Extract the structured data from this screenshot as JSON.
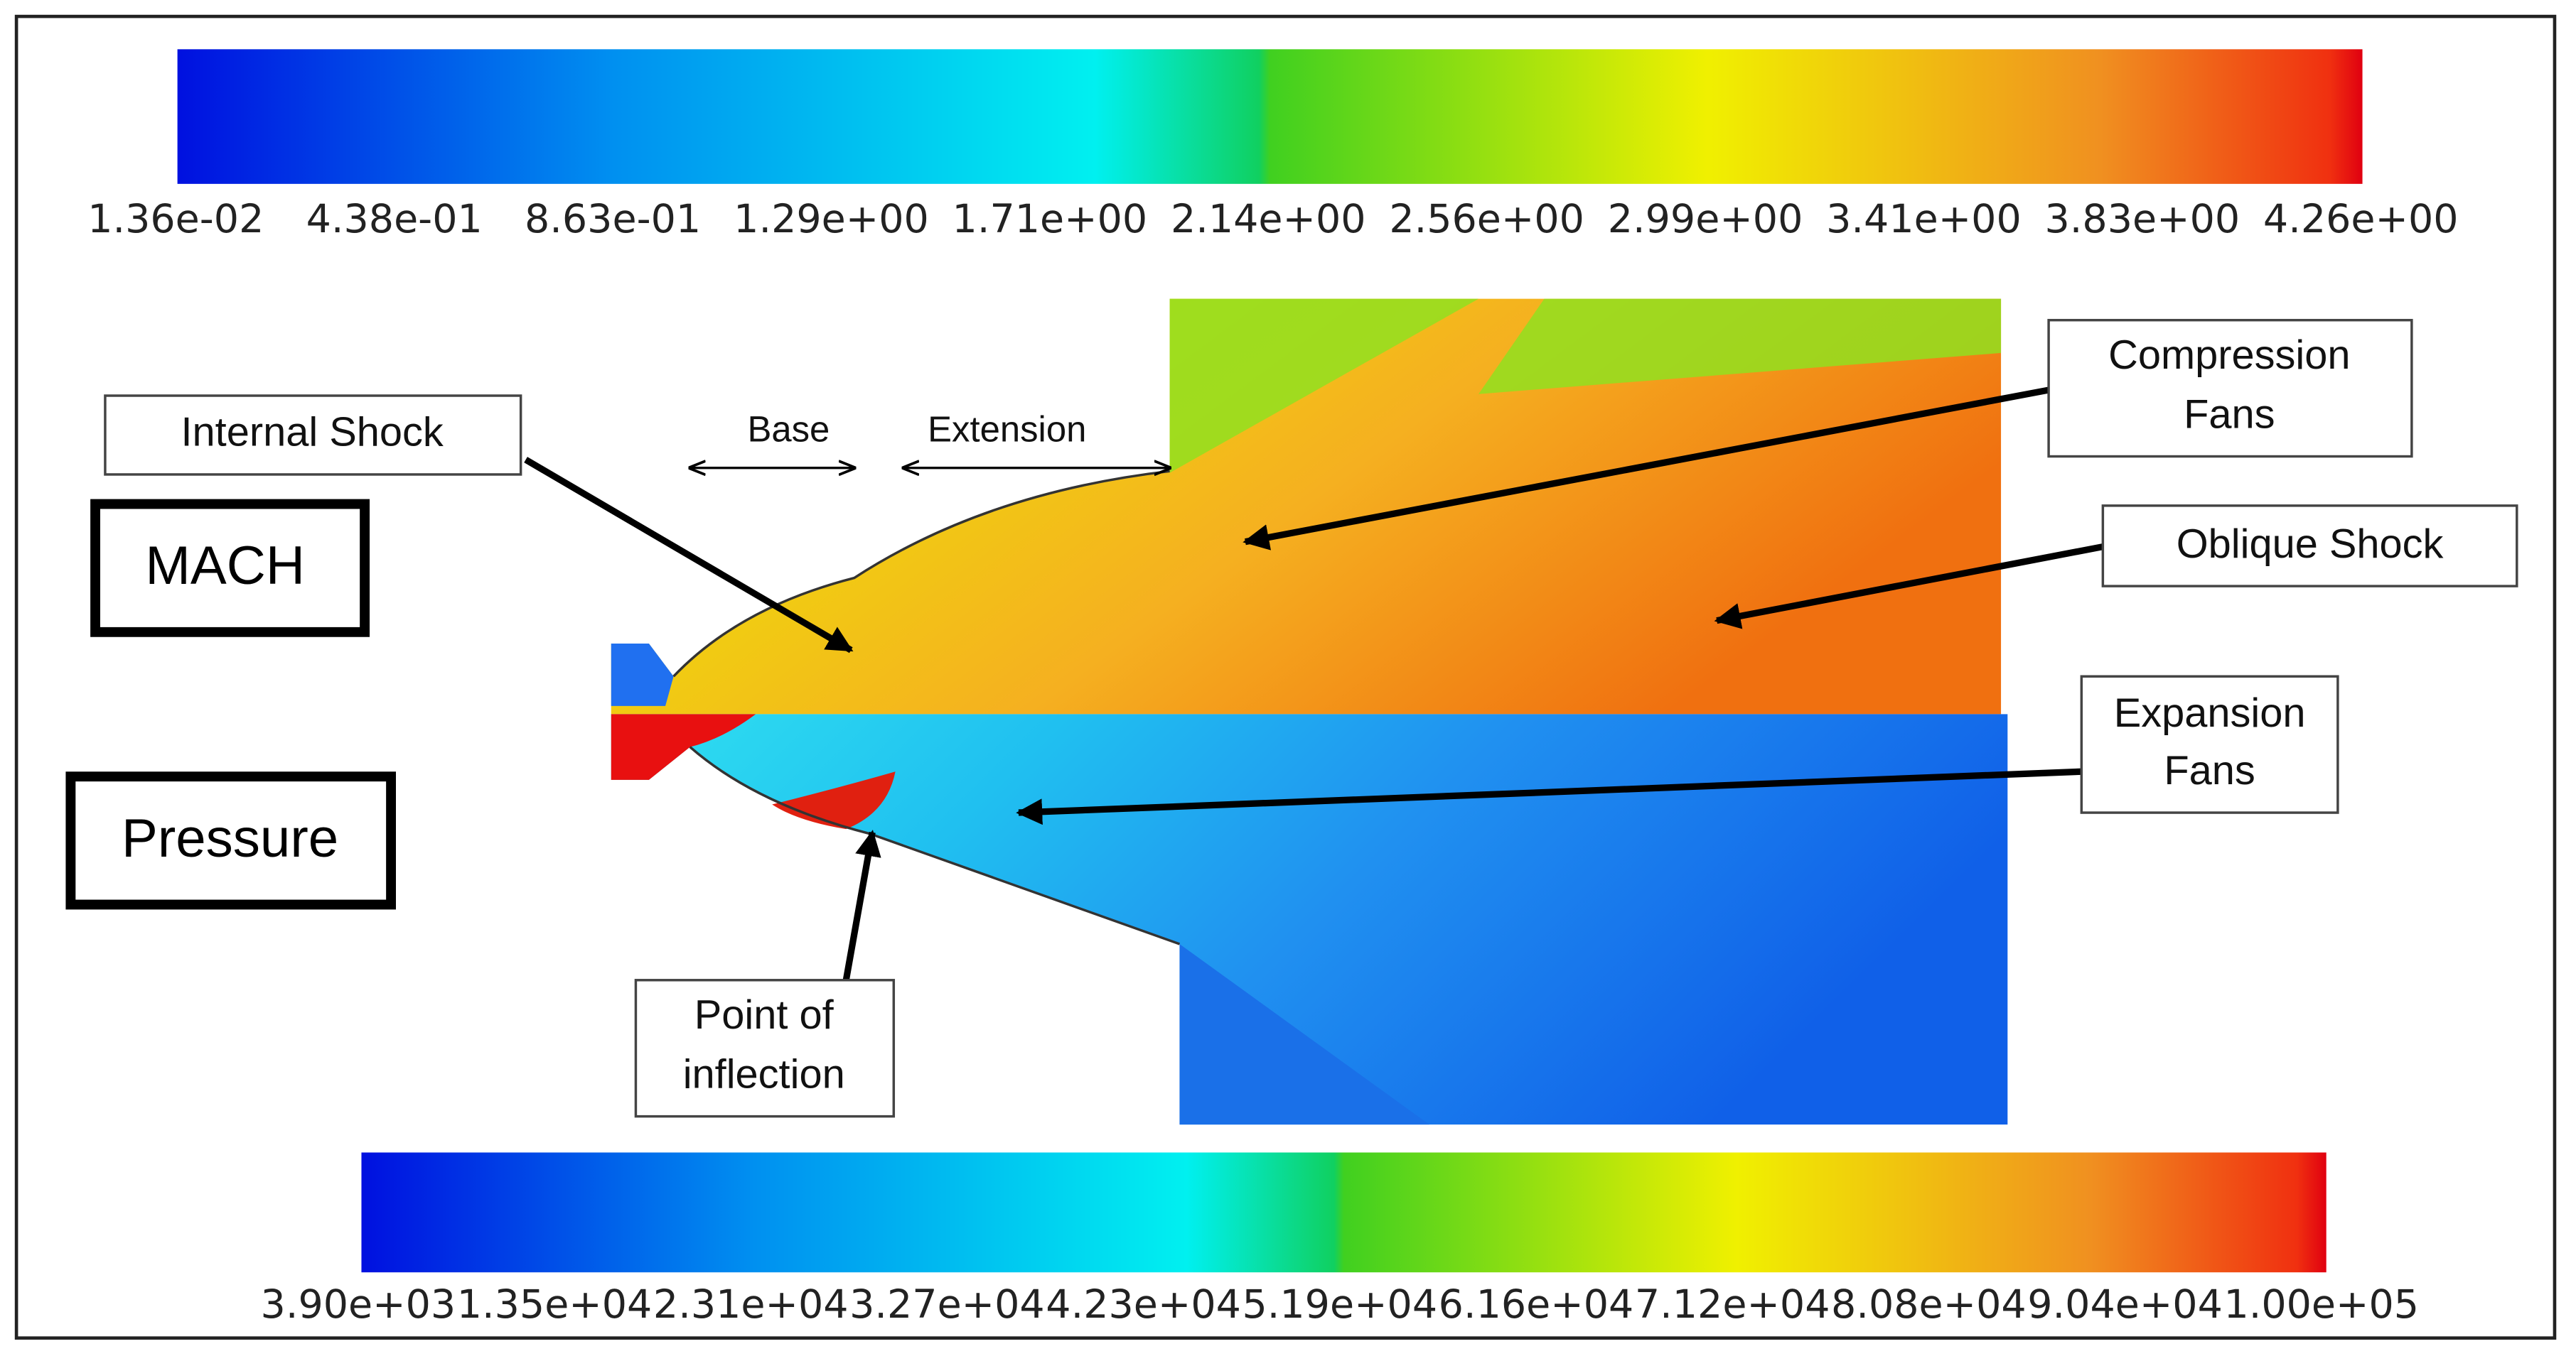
{
  "mach_colorbar": {
    "ticks": [
      "1.36e-02",
      "4.38e-01",
      "8.63e-01",
      "1.29e+00",
      "1.71e+00",
      "2.14e+00",
      "2.56e+00",
      "2.99e+00",
      "3.41e+00",
      "3.83e+00",
      "4.26e+00"
    ]
  },
  "pressure_colorbar": {
    "ticks": [
      "3.90e+03",
      "1.35e+04",
      "2.31e+04",
      "3.27e+04",
      "4.23e+04",
      "5.19e+04",
      "6.16e+04",
      "7.12e+04",
      "8.08e+04",
      "9.04e+04",
      "1.00e+05"
    ]
  },
  "labels": {
    "mach": "MACH",
    "pressure": "Pressure",
    "base": "Base",
    "extension": "Extension"
  },
  "annotations": [
    {
      "lines": [
        "Internal Shock"
      ]
    },
    {
      "lines": [
        "Compression",
        "Fans"
      ]
    },
    {
      "lines": [
        "Oblique Shock"
      ]
    },
    {
      "lines": [
        "Expansion",
        "Fans"
      ]
    },
    {
      "lines": [
        "Point of",
        "inflection"
      ]
    }
  ]
}
